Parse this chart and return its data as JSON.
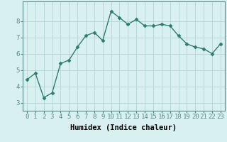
{
  "xlabel": "Humidex (Indice chaleur)",
  "ylabel": "",
  "x_values": [
    0,
    1,
    2,
    3,
    4,
    5,
    6,
    7,
    8,
    9,
    10,
    11,
    12,
    13,
    14,
    15,
    16,
    17,
    18,
    19,
    20,
    21,
    22,
    23
  ],
  "y_values": [
    4.4,
    4.8,
    3.3,
    3.6,
    5.4,
    5.6,
    6.4,
    7.1,
    7.3,
    6.8,
    8.6,
    8.2,
    7.8,
    8.1,
    7.7,
    7.7,
    7.8,
    7.7,
    7.1,
    6.6,
    6.4,
    6.3,
    6.0,
    6.6
  ],
  "line_color": "#2d7d6e",
  "marker": "D",
  "marker_size": 2.5,
  "line_width": 1.0,
  "bg_color": "#d8f0f0",
  "grid_color": "#b8d8d8",
  "ylim": [
    2.5,
    9.2
  ],
  "xlim": [
    -0.5,
    23.5
  ],
  "yticks": [
    3,
    4,
    5,
    6,
    7,
    8
  ],
  "xticks": [
    0,
    1,
    2,
    3,
    4,
    5,
    6,
    7,
    8,
    9,
    10,
    11,
    12,
    13,
    14,
    15,
    16,
    17,
    18,
    19,
    20,
    21,
    22,
    23
  ],
  "xlabel_fontsize": 7.5,
  "tick_fontsize": 6.5,
  "spine_color": "#5a8a8a"
}
